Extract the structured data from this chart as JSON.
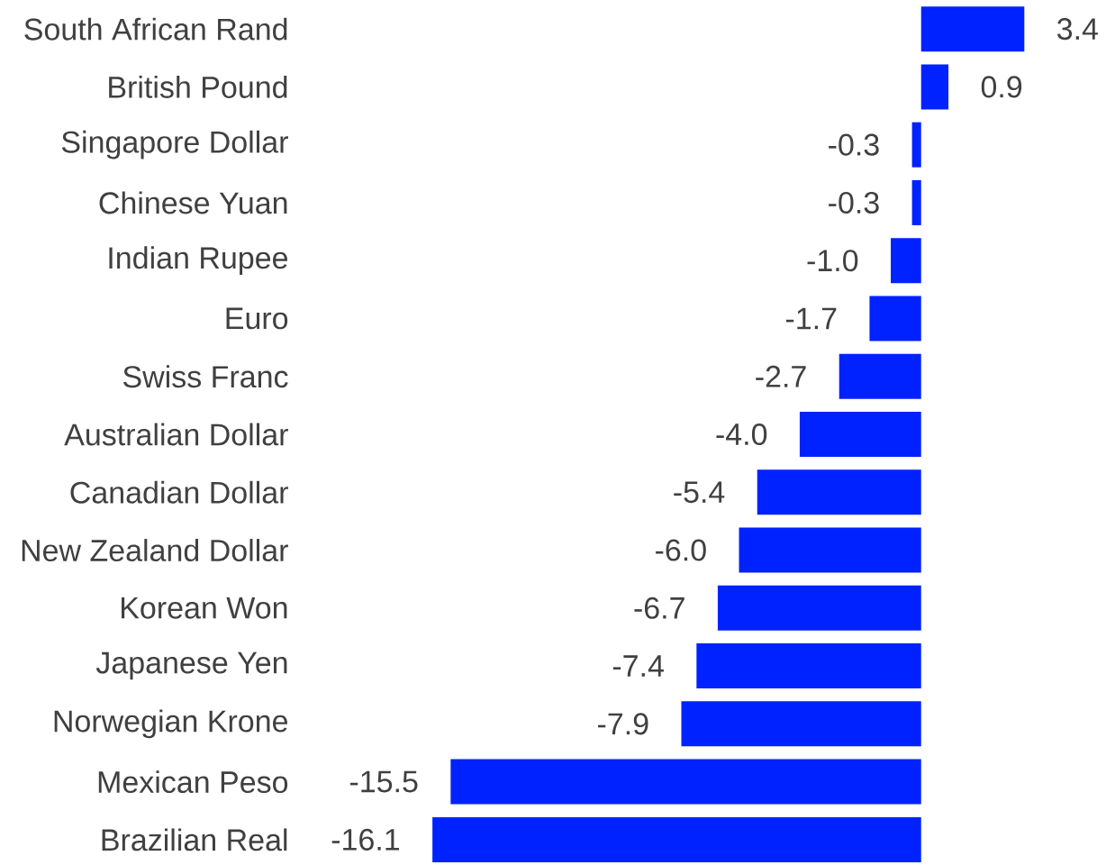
{
  "chart_data": {
    "type": "bar",
    "orientation": "horizontal",
    "categories": [
      "South African Rand",
      "British Pound",
      "Singapore Dollar",
      "Chinese Yuan",
      "Indian Rupee",
      "Euro",
      "Swiss Franc",
      "Australian Dollar",
      "Canadian Dollar",
      "New Zealand Dollar",
      "Korean Won",
      "Japanese Yen",
      "Norwegian Krone",
      "Mexican Peso",
      "Brazilian Real"
    ],
    "values": [
      3.4,
      0.9,
      -0.3,
      -0.3,
      -1.0,
      -1.7,
      -2.7,
      -4.0,
      -5.4,
      -6.0,
      -6.7,
      -7.4,
      -7.9,
      -15.5,
      -16.1
    ],
    "value_labels": [
      "3.4",
      "0.9",
      "-0.3",
      "-0.3",
      "-1.0",
      "-1.7",
      "-2.7",
      "-4.0",
      "-5.4",
      "-6.0",
      "-6.7",
      "-7.4",
      "-7.9",
      "-15.5",
      "-16.1"
    ],
    "color": "#0022ff",
    "tick_labels": "y"
  }
}
